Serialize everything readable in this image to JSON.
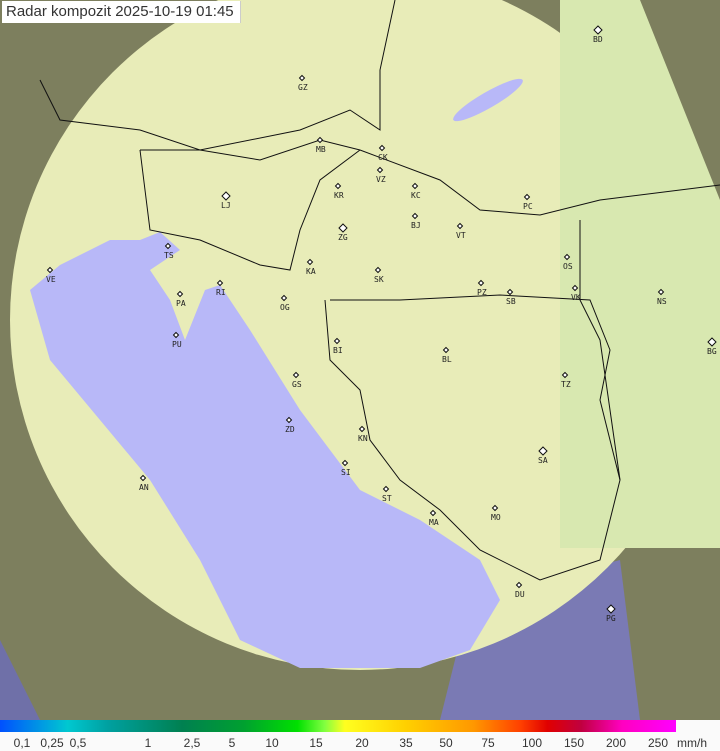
{
  "title": "Radar kompozit  2025-10-19   01:45",
  "legend": {
    "unit": "mm/h",
    "ticks": [
      "0,1",
      "0,25",
      "0,5",
      "1",
      "2,5",
      "5",
      "10",
      "15",
      "20",
      "35",
      "50",
      "75",
      "100",
      "150",
      "200",
      "250"
    ]
  },
  "colors": {
    "coverage": "#f0f0c0",
    "sea": "#b8b8f8",
    "outside": "#8a8a70"
  },
  "cities": [
    "BD",
    "GZ",
    "MB",
    "CK",
    "VZ",
    "KR",
    "KC",
    "PC",
    "LJ",
    "ZG",
    "BJ",
    "VT",
    "TS",
    "VE",
    "RI",
    "KA",
    "SK",
    "OS",
    "PZ",
    "SB",
    "VK",
    "NS",
    "PA",
    "OG",
    "PU",
    "BI",
    "BL",
    "BG",
    "GS",
    "TZ",
    "ZD",
    "KN",
    "SA",
    "SI",
    "AN",
    "ST",
    "MA",
    "MO",
    "DU",
    "PG"
  ]
}
